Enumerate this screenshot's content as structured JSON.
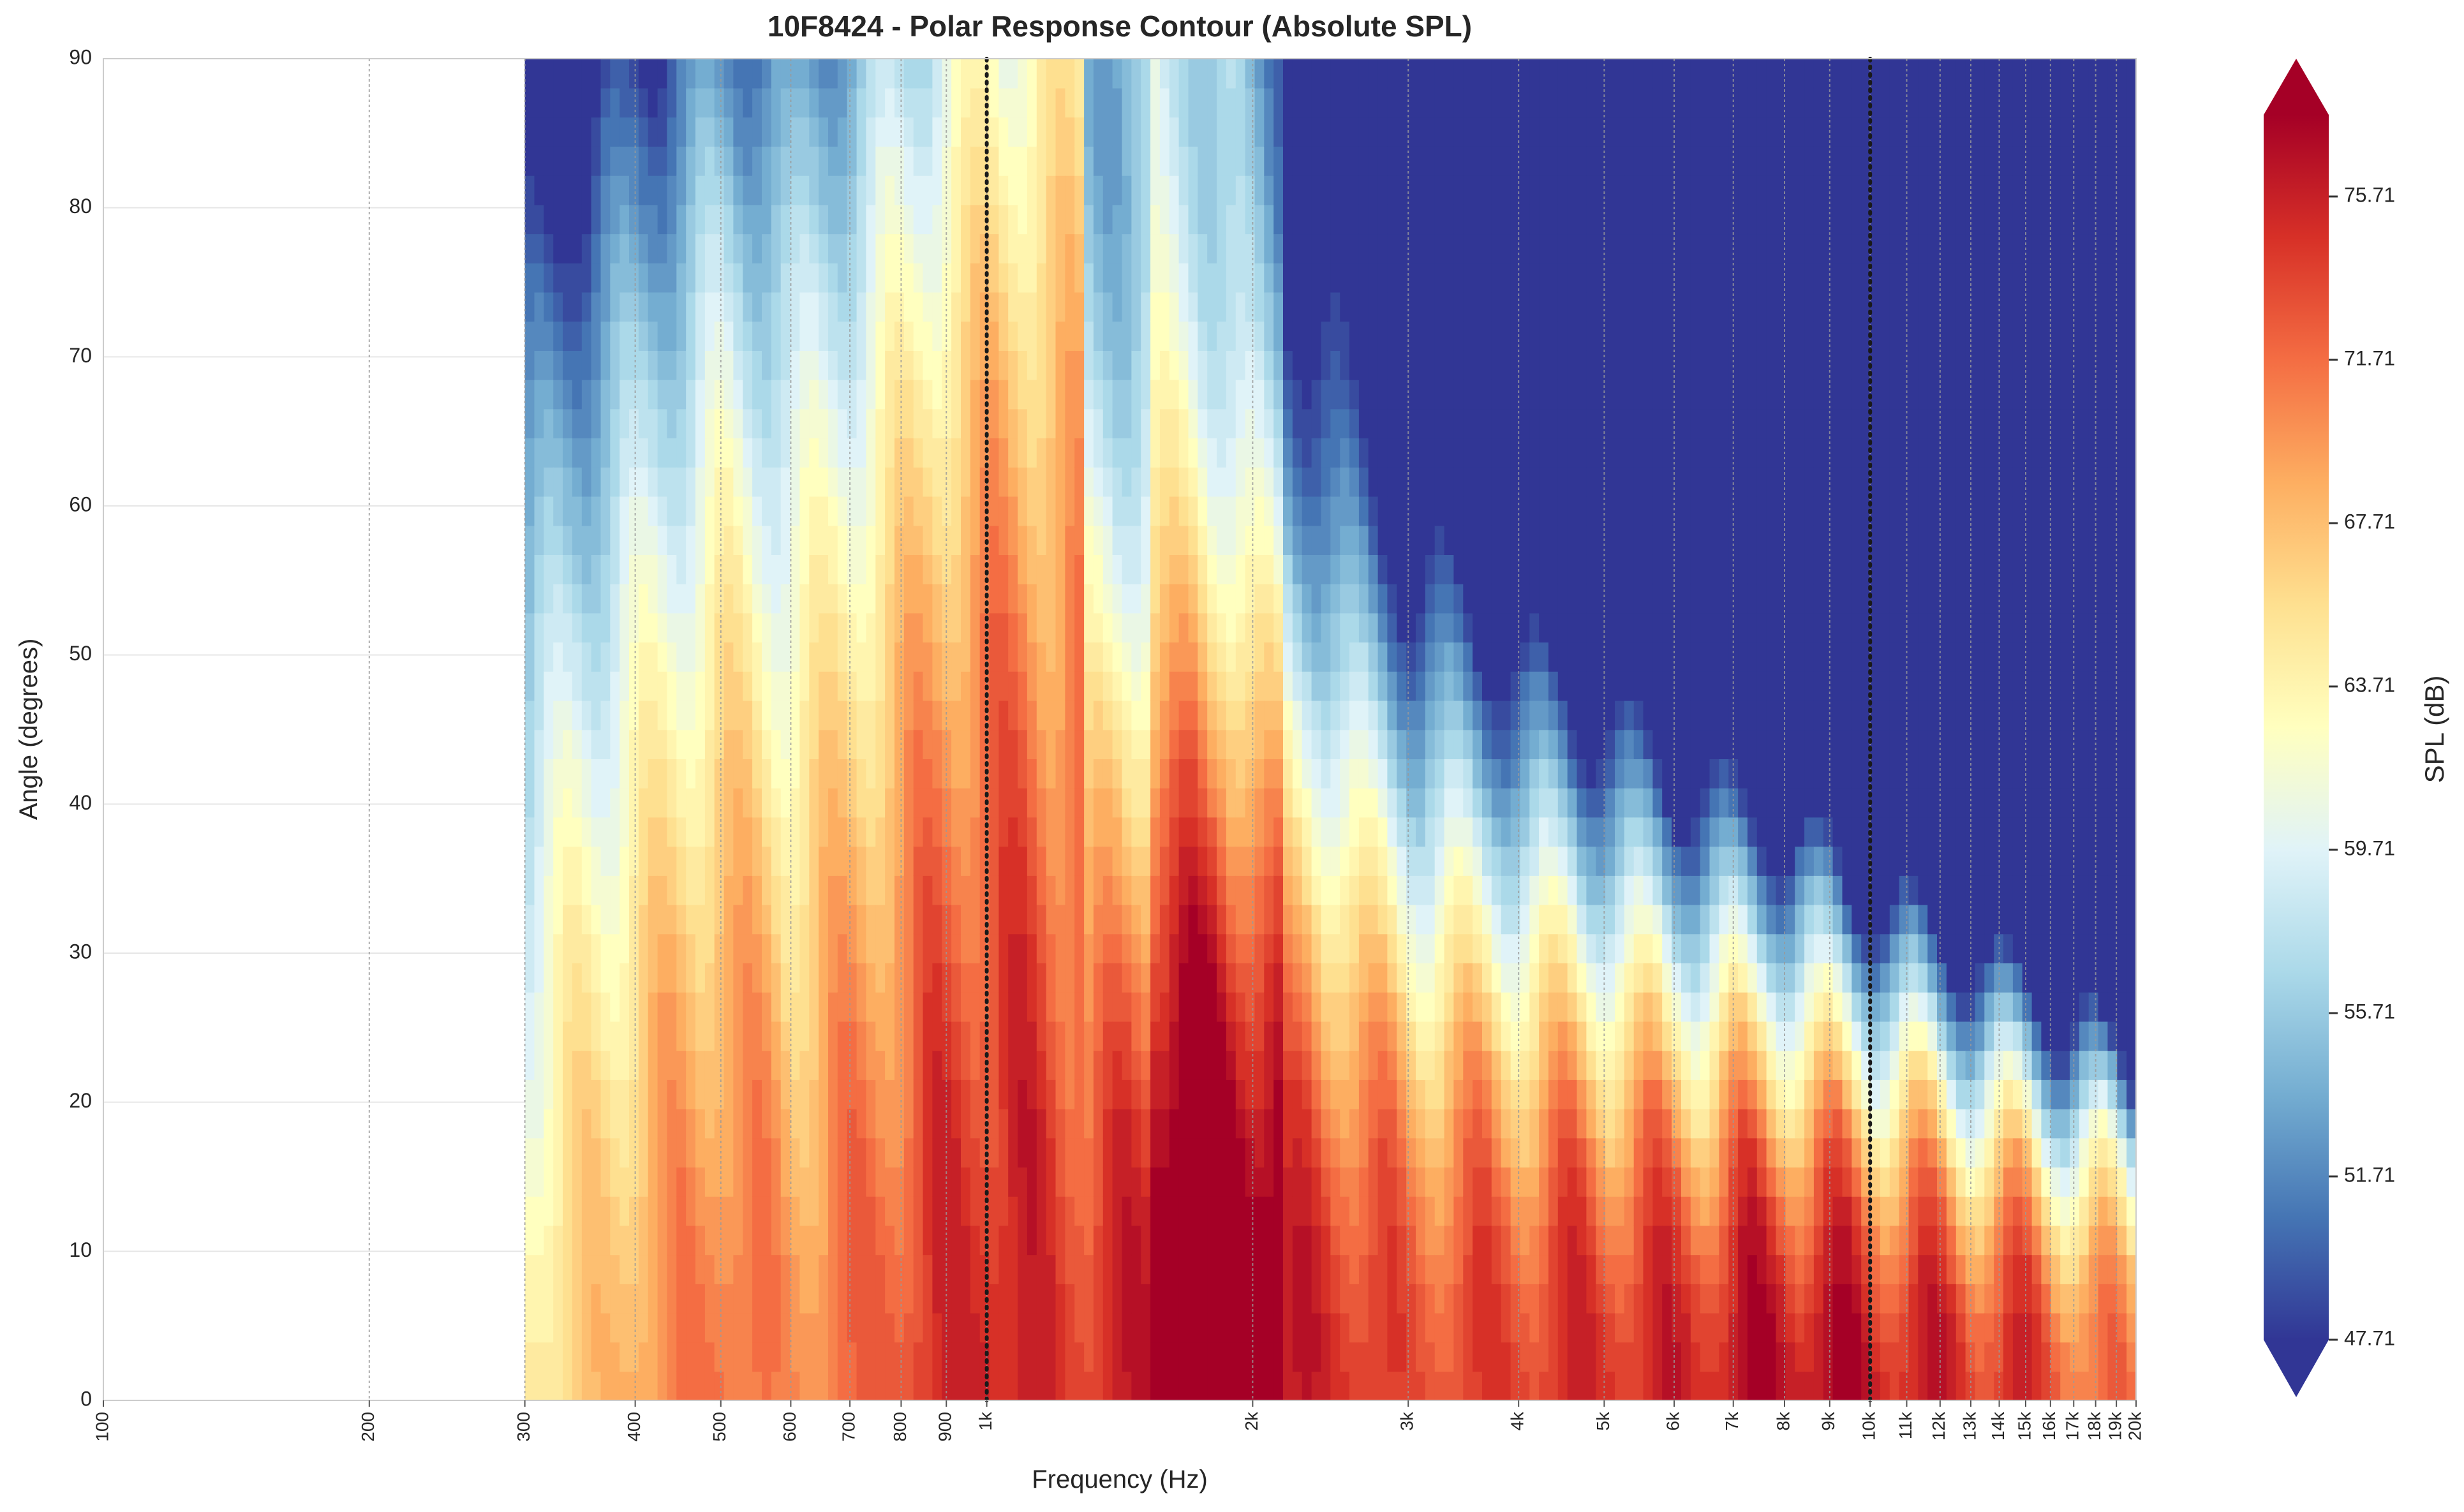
{
  "chart_data": {
    "type": "heatmap",
    "title": "10F8424 - Polar Response Contour (Absolute SPL)",
    "xlabel": "Frequency (Hz)",
    "ylabel": "Angle (degrees)",
    "x_scale": "log",
    "xlim": [
      100,
      20000
    ],
    "ylim": [
      0,
      90
    ],
    "data_start_hz": 300,
    "x_ticks": [
      100,
      200,
      300,
      400,
      500,
      600,
      700,
      800,
      900,
      1000,
      2000,
      3000,
      4000,
      5000,
      6000,
      7000,
      8000,
      9000,
      10000,
      11000,
      12000,
      13000,
      14000,
      15000,
      16000,
      17000,
      18000,
      19000,
      20000
    ],
    "x_tick_labels": [
      "100",
      "200",
      "300",
      "400",
      "500",
      "600",
      "700",
      "800",
      "900",
      "1k",
      "2k",
      "3k",
      "4k",
      "5k",
      "6k",
      "7k",
      "8k",
      "9k",
      "10k",
      "11k",
      "12k",
      "13k",
      "14k",
      "15k",
      "16k",
      "17k",
      "18k",
      "19k",
      "20k"
    ],
    "y_ticks": [
      0,
      10,
      20,
      30,
      40,
      50,
      60,
      70,
      80,
      90
    ],
    "marker_lines_hz": [
      1000,
      10000
    ],
    "grid": true,
    "colorbar": {
      "label": "SPL (dB)",
      "colormap": "RdYlBu_r",
      "range": [
        47.71,
        77.71
      ],
      "ticks": [
        47.71,
        51.71,
        55.71,
        59.71,
        63.71,
        67.71,
        71.71,
        75.71
      ],
      "levels": 30,
      "extend": "both"
    },
    "on_axis_spl_db": [
      {
        "hz": 300,
        "db": 64.5
      },
      {
        "hz": 400,
        "db": 69
      },
      {
        "hz": 500,
        "db": 72
      },
      {
        "hz": 600,
        "db": 70
      },
      {
        "hz": 700,
        "db": 71.5
      },
      {
        "hz": 900,
        "db": 75
      },
      {
        "hz": 1000,
        "db": 76
      },
      {
        "hz": 1300,
        "db": 74
      },
      {
        "hz": 1700,
        "db": 78
      },
      {
        "hz": 2000,
        "db": 76.5
      },
      {
        "hz": 2500,
        "db": 75
      },
      {
        "hz": 3000,
        "db": 73
      },
      {
        "hz": 4000,
        "db": 74
      },
      {
        "hz": 5000,
        "db": 75
      },
      {
        "hz": 6000,
        "db": 75
      },
      {
        "hz": 8000,
        "db": 77
      },
      {
        "hz": 10000,
        "db": 76
      },
      {
        "hz": 12000,
        "db": 75
      },
      {
        "hz": 15000,
        "db": 74
      },
      {
        "hz": 20000,
        "db": 70
      }
    ]
  }
}
